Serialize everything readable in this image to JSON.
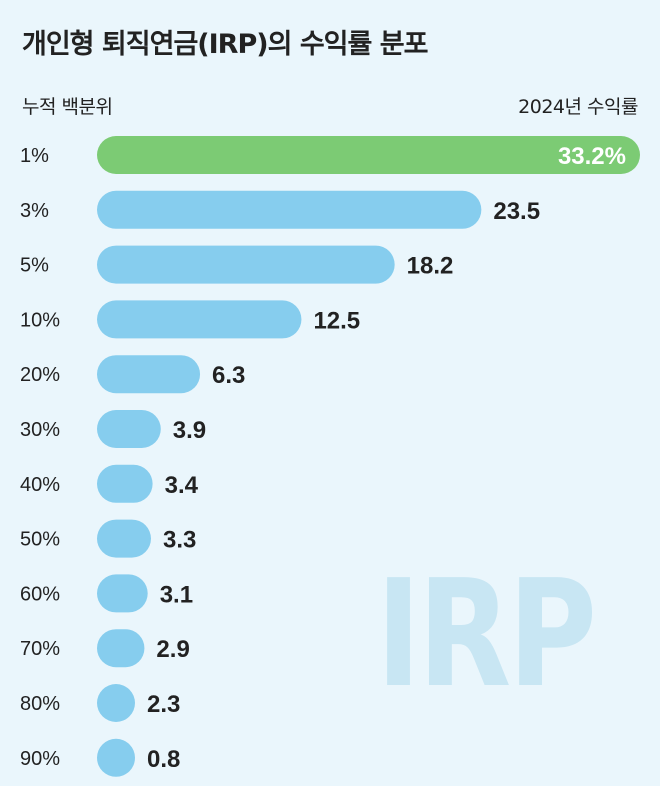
{
  "title": "개인형 퇴직연금(IRP)의 수익률 분포",
  "header": {
    "left": "누적 백분위",
    "right": "2024년 수익률"
  },
  "watermark": "IRP",
  "colors": {
    "background": "#eaf6fc",
    "bar": "#86cdee",
    "highlight": "#7ccb74",
    "label": "#222222",
    "highlight_label": "#ffffff"
  },
  "chart_data": {
    "type": "bar",
    "orientation": "horizontal",
    "title": "개인형 퇴직연금(IRP)의 수익률 분포",
    "xlabel": "2024년 수익률",
    "ylabel": "누적 백분위",
    "categories": [
      "1%",
      "3%",
      "5%",
      "10%",
      "20%",
      "30%",
      "40%",
      "50%",
      "60%",
      "70%",
      "80%",
      "90%"
    ],
    "values": [
      33.2,
      23.5,
      18.2,
      12.5,
      6.3,
      3.9,
      3.4,
      3.3,
      3.1,
      2.9,
      2.3,
      0.8
    ],
    "value_labels": [
      "33.2%",
      "23.5",
      "18.2",
      "12.5",
      "6.3",
      "3.9",
      "3.4",
      "3.3",
      "3.1",
      "2.9",
      "2.3",
      "0.8"
    ],
    "highlight_index": 0,
    "grid": false,
    "legend": "none"
  }
}
